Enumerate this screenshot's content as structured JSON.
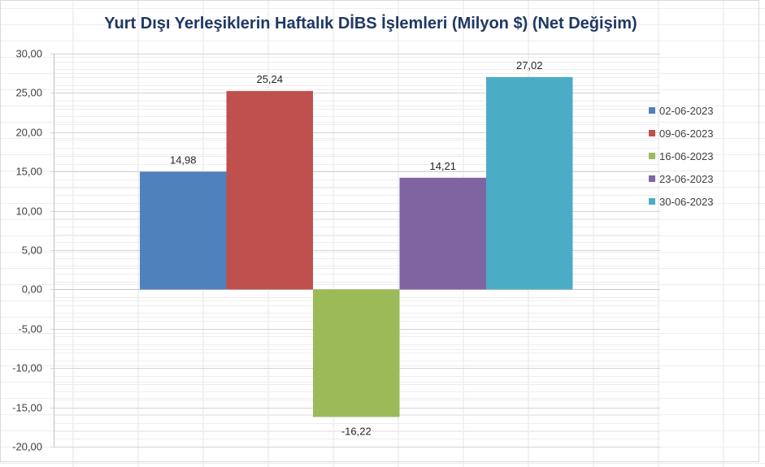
{
  "chart_data": {
    "type": "bar",
    "title": "Yurt Dışı Yerleşiklerin Haftalık DİBS İşlemleri (Milyon $) (Net Değişim)",
    "xlabel": "",
    "ylabel": "",
    "ylim": [
      -20,
      30
    ],
    "ytick_step": 5,
    "grid": true,
    "legend": "right",
    "categories": [
      ""
    ],
    "series": [
      {
        "name": "02-06-2023",
        "values": [
          14.98
        ],
        "label": "14,98",
        "color": "#4f81bd"
      },
      {
        "name": "09-06-2023",
        "values": [
          25.24
        ],
        "label": "25,24",
        "color": "#c0504d"
      },
      {
        "name": "16-06-2023",
        "values": [
          -16.22
        ],
        "label": "-16,22",
        "color": "#9bbb59"
      },
      {
        "name": "23-06-2023",
        "values": [
          14.21
        ],
        "label": "14,21",
        "color": "#8064a2"
      },
      {
        "name": "30-06-2023",
        "values": [
          27.02
        ],
        "label": "27,02",
        "color": "#4bacc6"
      }
    ],
    "yticks": [
      "30,00",
      "25,00",
      "20,00",
      "15,00",
      "10,00",
      "5,00",
      "0,00",
      "-5,00",
      "-10,00",
      "-15,00",
      "-20,00"
    ]
  }
}
